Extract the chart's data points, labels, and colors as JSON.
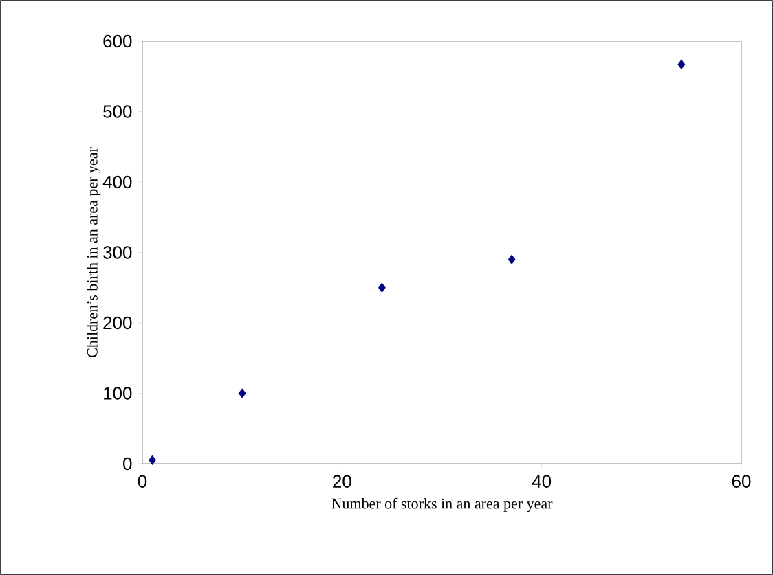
{
  "chart_data": {
    "type": "scatter",
    "xlabel": "Number of storks in an area per year",
    "ylabel": "Children’s birth in an area per year",
    "x": [
      1,
      10,
      24,
      37,
      54
    ],
    "values": [
      5,
      100,
      250,
      290,
      567
    ],
    "color": "#000080",
    "marker": "diamond",
    "xlim": [
      0,
      60
    ],
    "ylim": [
      0,
      600
    ],
    "xticks": [
      0,
      20,
      40,
      60
    ],
    "yticks": [
      0,
      100,
      200,
      300,
      400,
      500,
      600
    ]
  }
}
